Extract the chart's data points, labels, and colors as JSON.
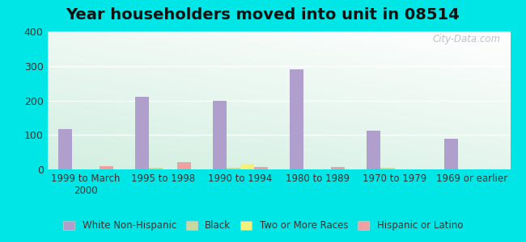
{
  "title": "Year householders moved into unit in 08514",
  "categories": [
    "1999 to March\n2000",
    "1995 to 1998",
    "1990 to 1994",
    "1980 to 1989",
    "1970 to 1979",
    "1969 or earlier"
  ],
  "series": {
    "White Non-Hispanic": [
      117,
      210,
      199,
      291,
      112,
      88
    ],
    "Black": [
      0,
      5,
      5,
      0,
      5,
      0
    ],
    "Two or More Races": [
      0,
      0,
      17,
      0,
      0,
      0
    ],
    "Hispanic or Latino": [
      10,
      20,
      8,
      8,
      0,
      0
    ]
  },
  "colors": {
    "White Non-Hispanic": "#b09fcc",
    "Black": "#c8d9a0",
    "Two or More Races": "#f5f07a",
    "Hispanic or Latino": "#f0a0a0"
  },
  "ylim": [
    0,
    400
  ],
  "yticks": [
    0,
    100,
    200,
    300,
    400
  ],
  "background_color": "#00e5e5",
  "bar_width": 0.18,
  "title_fontsize": 14
}
